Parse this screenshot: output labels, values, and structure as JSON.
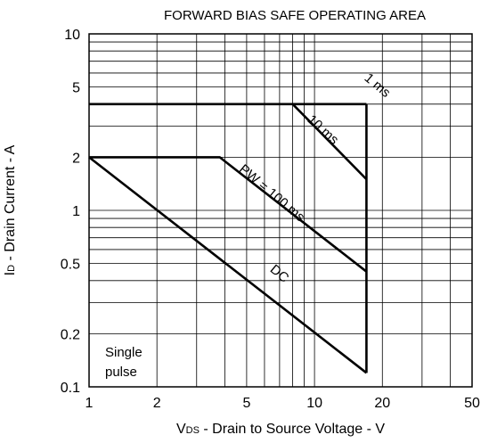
{
  "chart_data": {
    "type": "line",
    "title": "FORWARD BIAS SAFE OPERATING AREA",
    "xlabel_prefix": "V",
    "xlabel_sub": "DS",
    "xlabel_rest": " - Drain to Source Voltage - V",
    "ylabel_prefix": "I",
    "ylabel_sub": "D",
    "ylabel_rest": " - Drain Current - A",
    "xscale": "log",
    "yscale": "log",
    "xlim": [
      1,
      50
    ],
    "ylim": [
      0.1,
      10
    ],
    "grid": true,
    "xticks": [
      1,
      2,
      5,
      10,
      20,
      50
    ],
    "xtick_labels": [
      "1",
      "2",
      "5",
      "10",
      "20",
      "50"
    ],
    "yticks": [
      0.1,
      0.2,
      0.5,
      1,
      2,
      5,
      10
    ],
    "ytick_labels": [
      "0.1",
      "0.2",
      "0.5",
      "1",
      "2",
      "5",
      "10"
    ],
    "note_line1": "Single",
    "note_line2": "pulse",
    "series": [
      {
        "name": "1 ms",
        "x": [
          1,
          17
        ],
        "y": [
          4,
          4
        ]
      },
      {
        "name": "10 ms",
        "x": [
          8,
          17
        ],
        "y": [
          4,
          1.5
        ]
      },
      {
        "name": "PW = 100 ms",
        "x": [
          1,
          3.8,
          17
        ],
        "y": [
          2,
          2,
          0.45
        ]
      },
      {
        "name": "DC",
        "x": [
          1,
          17
        ],
        "y": [
          2,
          0.12
        ]
      }
    ],
    "vds_max": 17,
    "curve_labels": [
      {
        "text": "1 ms",
        "x": 18.5,
        "y": 4.9,
        "angle": 40
      },
      {
        "text": "10 ms",
        "x": 10.6,
        "y": 2.75,
        "angle": 42
      },
      {
        "text": "PW = 100 ms",
        "x": 6.3,
        "y": 1.2,
        "angle": 40
      },
      {
        "text": "DC",
        "x": 6.8,
        "y": 0.42,
        "angle": 40
      }
    ]
  }
}
